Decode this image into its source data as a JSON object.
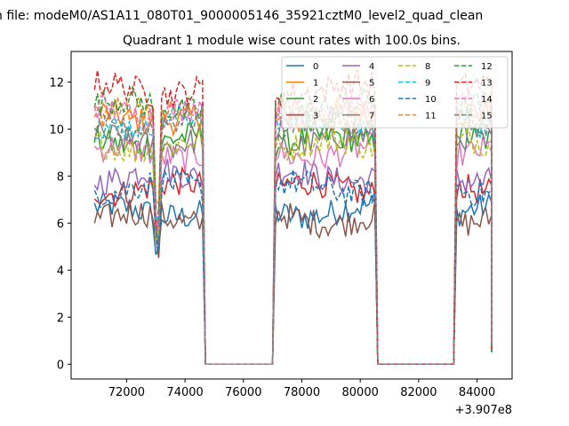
{
  "chart_data": {
    "type": "line",
    "suptitle": "n file: modeM0/AS1A11_080T01_9000005146_35921cztM0_level2_quad_clean",
    "title": "Quadrant 1 module wise count rates with 100.0s bins.",
    "xlabel": "",
    "ylabel": "",
    "offset_text": "+3.907e8",
    "xlim": [
      70100,
      85200
    ],
    "ylim": [
      -0.63,
      13.3
    ],
    "xticks": [
      72000,
      74000,
      76000,
      78000,
      80000,
      82000,
      84000
    ],
    "xtick_labels": [
      "72000",
      "74000",
      "76000",
      "78000",
      "80000",
      "82000",
      "84000"
    ],
    "yticks": [
      0,
      2,
      4,
      6,
      8,
      10,
      12
    ],
    "ytick_labels": [
      "0",
      "2",
      "4",
      "6",
      "8",
      "10",
      "12"
    ],
    "grid": false,
    "legend_position": "upper-right",
    "legend_columns": 4,
    "segments": [
      [
        70900,
        74600
      ],
      [
        77100,
        80500
      ],
      [
        83300,
        84500
      ]
    ],
    "gap_value": 0,
    "series": [
      {
        "name": "0",
        "color": "#1f77b4",
        "dash": "solid",
        "level": 6.5
      },
      {
        "name": "1",
        "color": "#ff7f0e",
        "dash": "solid",
        "level": 10.5
      },
      {
        "name": "2",
        "color": "#2ca02c",
        "dash": "solid",
        "level": 9.5
      },
      {
        "name": "3",
        "color": "#d62728",
        "dash": "solid",
        "level": 7.5
      },
      {
        "name": "4",
        "color": "#9467bd",
        "dash": "solid",
        "level": 8.0
      },
      {
        "name": "5",
        "color": "#8c564b",
        "dash": "solid",
        "level": 6.2
      },
      {
        "name": "6",
        "color": "#e377c2",
        "dash": "solid",
        "level": 9.0
      },
      {
        "name": "7",
        "color": "#7f7f7f",
        "dash": "solid",
        "level": 9.5
      },
      {
        "name": "8",
        "color": "#bcbd22",
        "dash": "dashed",
        "level": 9.3
      },
      {
        "name": "9",
        "color": "#17becf",
        "dash": "dashed",
        "level": 10.3
      },
      {
        "name": "10",
        "color": "#1f77b4",
        "dash": "dashed",
        "level": 7.5
      },
      {
        "name": "11",
        "color": "#ff7f0e",
        "dash": "dashed",
        "level": 10.7
      },
      {
        "name": "12",
        "color": "#2ca02c",
        "dash": "dashed",
        "level": 11.0
      },
      {
        "name": "13",
        "color": "#d62728",
        "dash": "dashed",
        "level": 11.7
      },
      {
        "name": "14",
        "color": "#e377c2",
        "dash": "dashed",
        "level": 10.8
      },
      {
        "name": "15",
        "color": "#7f7f7f",
        "dash": "dashed",
        "level": 10.2
      }
    ]
  }
}
